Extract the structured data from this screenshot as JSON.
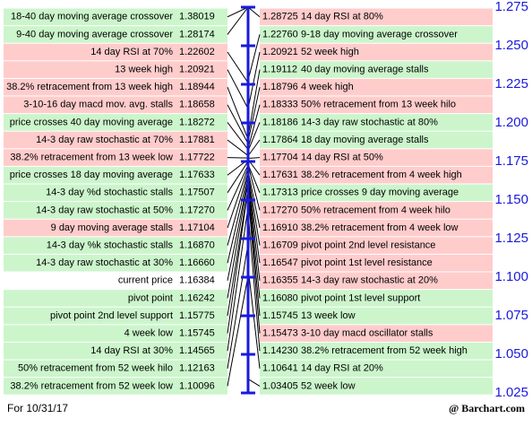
{
  "chart_data": {
    "type": "cheat-sheet",
    "ylim": [
      1.025,
      1.275
    ],
    "yticks": [
      1.275,
      {
        "value": 1.25,
        "label": "1.250"
      },
      1.225,
      {
        "value": 1.2,
        "label": "1.200"
      },
      1.175,
      {
        "value": 1.15,
        "label": "1.150"
      },
      1.125,
      {
        "value": 1.1,
        "label": "1.100"
      },
      1.075,
      {
        "value": 1.05,
        "label": "1.050"
      },
      1.025
    ],
    "axis_color": "#1a1adc",
    "left": {
      "labels": [
        "18-40 day moving average crossover",
        "9-40 day moving average crossover",
        "14 day RSI at 70%",
        "13 week high",
        "38.2% retracement from 13 week high",
        "3-10-16 day macd mov. avg. stalls",
        "price crosses 40 day moving average",
        "14-3 day raw stochastic at 70%",
        "38.2% retracement from 13 week low",
        "price crosses 18 day moving average",
        "14-3 day %d stochastic stalls",
        "14-3 day raw stochastic at 50%",
        "9 day moving average stalls",
        "14-3 day %k stochastic stalls",
        "14-3 day raw stochastic at 30%",
        "current price",
        "pivot point",
        "pivot point 2nd level support",
        "4 week low",
        "14 day RSI at 30%",
        "50% retracement from 52 week hilo",
        "38.2% retracement from 52 week low"
      ],
      "values": [
        1.38019,
        1.28174,
        1.22602,
        1.20921,
        1.18944,
        1.18658,
        1.18272,
        1.17881,
        1.17722,
        1.17633,
        1.17507,
        1.1727,
        1.17104,
        1.1687,
        1.1666,
        1.16384,
        1.16242,
        1.15775,
        1.15745,
        1.14565,
        1.12163,
        1.10096
      ],
      "value_labels": [
        "1.38019",
        "1.28174",
        "1.22602",
        "1.20921",
        "1.18944",
        "1.18658",
        "1.18272",
        "1.17881",
        "1.17722",
        "1.17633",
        "1.17507",
        "1.17270",
        "1.17104",
        "1.16870",
        "1.16660",
        "1.16384",
        "1.16242",
        "1.15775",
        "1.15745",
        "1.14565",
        "1.12163",
        "1.10096"
      ],
      "colors": [
        "#ccf5cc",
        "#ccf5cc",
        "#ffcccc",
        "#ffcccc",
        "#ffcccc",
        "#ffcccc",
        "#ccf5cc",
        "#ffcccc",
        "#ffcccc",
        "#ccf5cc",
        "#ccf5cc",
        "#ccf5cc",
        "#ffcccc",
        "#ccf5cc",
        "#ccf5cc",
        "#ffffff",
        "#ccf5cc",
        "#ccf5cc",
        "#ccf5cc",
        "#ccf5cc",
        "#ccf5cc",
        "#ccf5cc"
      ]
    },
    "right": {
      "labels": [
        "14 day RSI at 80%",
        "9-18 day moving average crossover",
        "52 week high",
        "40 day moving average stalls",
        "4 week high",
        "50% retracement from 13 week hilo",
        "14-3 day raw stochastic at 80%",
        "18 day moving average stalls",
        "14 day RSI at 50%",
        "38.2% retracement from 4 week high",
        "price crosses 9 day moving average",
        "50% retracement from 4 week hilo",
        "38.2% retracement from 4 week low",
        "pivot point 2nd level resistance",
        "pivot point 1st level resistance",
        "14-3 day raw stochastic at 20%",
        "pivot point 1st level support",
        "13 week low",
        "3-10 day macd oscillator stalls",
        "38.2% retracement from 52 week high",
        "14 day RSI at 20%",
        "52 week low"
      ],
      "values": [
        1.28725,
        1.2276,
        1.20921,
        1.19112,
        1.18796,
        1.18333,
        1.18186,
        1.17864,
        1.17704,
        1.17631,
        1.17313,
        1.1727,
        1.1691,
        1.16709,
        1.16547,
        1.16355,
        1.1608,
        1.15745,
        1.15473,
        1.1423,
        1.10641,
        1.03405
      ],
      "value_labels": [
        "1.28725",
        "1.22760",
        "1.20921",
        "1.19112",
        "1.18796",
        "1.18333",
        "1.18186",
        "1.17864",
        "1.17704",
        "1.17631",
        "1.17313",
        "1.17270",
        "1.16910",
        "1.16709",
        "1.16547",
        "1.16355",
        "1.16080",
        "1.15745",
        "1.15473",
        "1.14230",
        "1.10641",
        "1.03405"
      ],
      "colors": [
        "#ffcccc",
        "#ccf5cc",
        "#ffcccc",
        "#ccf5cc",
        "#ffcccc",
        "#ffcccc",
        "#ccf5cc",
        "#ccf5cc",
        "#ffcccc",
        "#ffcccc",
        "#ccf5cc",
        "#ffcccc",
        "#ffcccc",
        "#ffcccc",
        "#ffcccc",
        "#ffcccc",
        "#ccf5cc",
        "#ccf5cc",
        "#ffcccc",
        "#ccf5cc",
        "#ccf5cc",
        "#ccf5cc"
      ]
    },
    "date_note": "For 10/31/17",
    "source": "@ Barchart.com"
  }
}
